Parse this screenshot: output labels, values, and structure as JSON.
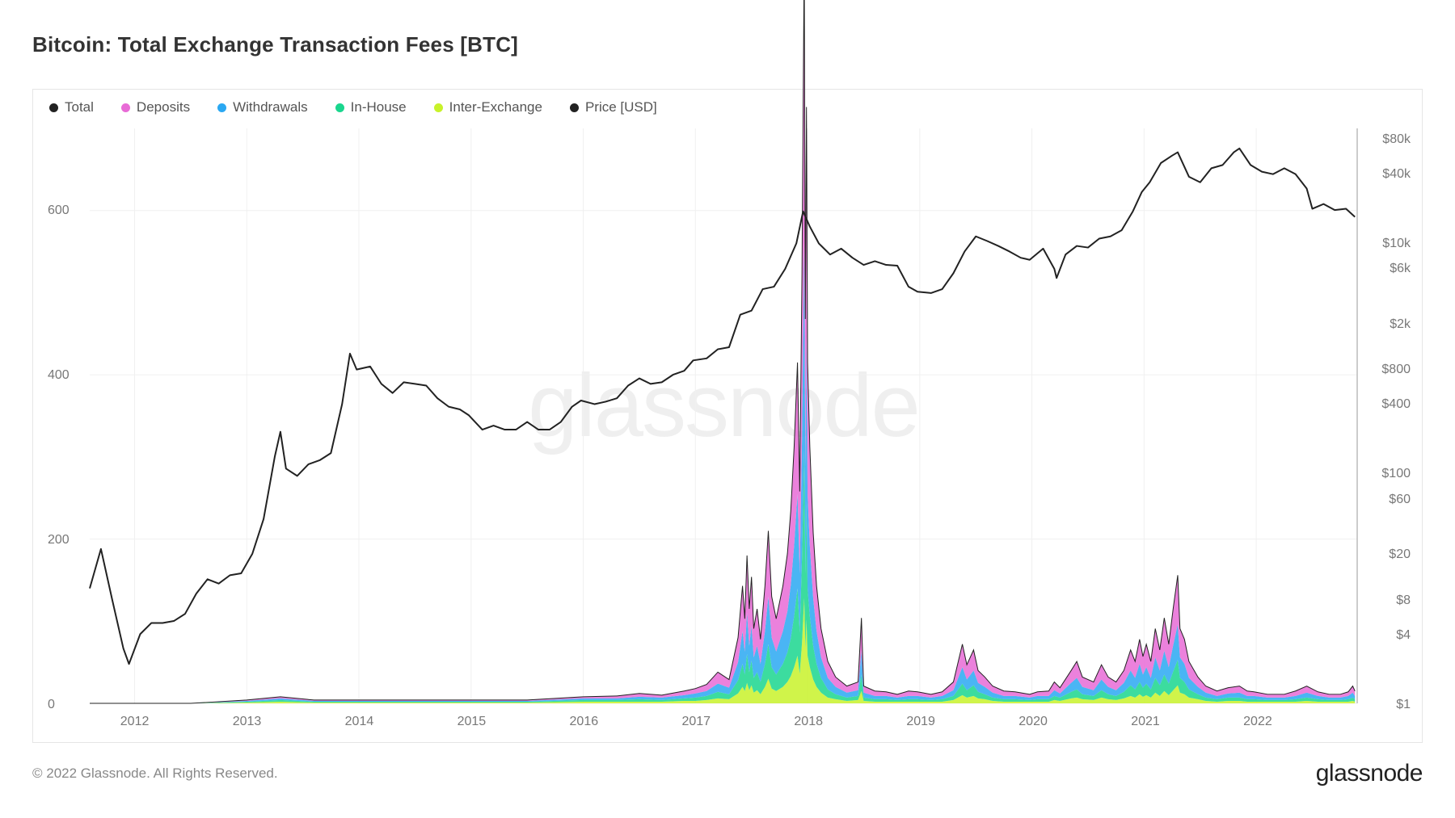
{
  "title": "Bitcoin: Total Exchange Transaction Fees [BTC]",
  "watermark": "glassnode",
  "copyright": "© 2022 Glassnode. All Rights Reserved.",
  "brand": "glassnode",
  "legend": [
    {
      "label": "Total",
      "color": "#222222"
    },
    {
      "label": "Deposits",
      "color": "#e86bd6"
    },
    {
      "label": "Withdrawals",
      "color": "#2aa8f2"
    },
    {
      "label": "In-House",
      "color": "#1ad68e"
    },
    {
      "label": "Inter-Exchange",
      "color": "#c8f22a"
    },
    {
      "label": "Price [USD]",
      "color": "#222222"
    }
  ],
  "chart": {
    "type": "combo-stacked-area+line-log-secondary",
    "background_color": "#ffffff",
    "border_color": "#e5e5e5",
    "grid_color": "#f0f0f0",
    "left_axis": {
      "scale": "linear",
      "min": 0,
      "max": 700,
      "ticks": [
        0,
        200,
        400,
        600
      ],
      "label_color": "#777777",
      "label_fontsize": 16
    },
    "right_axis": {
      "scale": "log",
      "min": 1,
      "max": 100000,
      "ticks": [
        "$1",
        "$4",
        "$8",
        "$20",
        "$60",
        "$100",
        "$400",
        "$800",
        "$2k",
        "$6k",
        "$10k",
        "$40k",
        "$80k"
      ],
      "tick_values": [
        1,
        4,
        8,
        20,
        60,
        100,
        400,
        800,
        2000,
        6000,
        10000,
        40000,
        80000
      ],
      "label_color": "#777777",
      "label_fontsize": 16
    },
    "x_axis": {
      "min_year": 2011.6,
      "max_year": 2022.9,
      "ticks": [
        "2012",
        "2013",
        "2014",
        "2015",
        "2016",
        "2017",
        "2018",
        "2019",
        "2020",
        "2021",
        "2022"
      ],
      "label_color": "#777777",
      "label_fontsize": 16
    },
    "price_line": {
      "color": "#222222",
      "width": 2,
      "points": [
        [
          2011.6,
          10
        ],
        [
          2011.7,
          22
        ],
        [
          2011.8,
          8
        ],
        [
          2011.9,
          3
        ],
        [
          2011.95,
          2.2
        ],
        [
          2012.05,
          4
        ],
        [
          2012.15,
          5
        ],
        [
          2012.25,
          5
        ],
        [
          2012.35,
          5.2
        ],
        [
          2012.45,
          6
        ],
        [
          2012.55,
          9
        ],
        [
          2012.65,
          12
        ],
        [
          2012.75,
          11
        ],
        [
          2012.85,
          13
        ],
        [
          2012.95,
          13.5
        ],
        [
          2013.05,
          20
        ],
        [
          2013.15,
          40
        ],
        [
          2013.25,
          140
        ],
        [
          2013.3,
          230
        ],
        [
          2013.35,
          110
        ],
        [
          2013.45,
          95
        ],
        [
          2013.55,
          120
        ],
        [
          2013.65,
          130
        ],
        [
          2013.75,
          150
        ],
        [
          2013.85,
          400
        ],
        [
          2013.92,
          1100
        ],
        [
          2013.98,
          800
        ],
        [
          2014.1,
          850
        ],
        [
          2014.2,
          600
        ],
        [
          2014.3,
          500
        ],
        [
          2014.4,
          620
        ],
        [
          2014.5,
          600
        ],
        [
          2014.6,
          580
        ],
        [
          2014.7,
          450
        ],
        [
          2014.8,
          380
        ],
        [
          2014.9,
          360
        ],
        [
          2014.98,
          320
        ],
        [
          2015.1,
          240
        ],
        [
          2015.2,
          260
        ],
        [
          2015.3,
          240
        ],
        [
          2015.4,
          240
        ],
        [
          2015.5,
          280
        ],
        [
          2015.6,
          240
        ],
        [
          2015.7,
          240
        ],
        [
          2015.8,
          280
        ],
        [
          2015.9,
          380
        ],
        [
          2015.98,
          430
        ],
        [
          2016.1,
          400
        ],
        [
          2016.2,
          420
        ],
        [
          2016.3,
          450
        ],
        [
          2016.4,
          580
        ],
        [
          2016.5,
          670
        ],
        [
          2016.6,
          600
        ],
        [
          2016.7,
          620
        ],
        [
          2016.8,
          720
        ],
        [
          2016.9,
          780
        ],
        [
          2016.98,
          960
        ],
        [
          2017.1,
          1000
        ],
        [
          2017.2,
          1200
        ],
        [
          2017.3,
          1250
        ],
        [
          2017.4,
          2400
        ],
        [
          2017.5,
          2600
        ],
        [
          2017.6,
          4000
        ],
        [
          2017.7,
          4200
        ],
        [
          2017.8,
          6000
        ],
        [
          2017.9,
          10000
        ],
        [
          2017.96,
          19000
        ],
        [
          2018.02,
          14000
        ],
        [
          2018.1,
          10000
        ],
        [
          2018.2,
          8000
        ],
        [
          2018.3,
          9000
        ],
        [
          2018.4,
          7500
        ],
        [
          2018.5,
          6500
        ],
        [
          2018.6,
          7000
        ],
        [
          2018.7,
          6500
        ],
        [
          2018.8,
          6400
        ],
        [
          2018.9,
          4200
        ],
        [
          2018.98,
          3800
        ],
        [
          2019.1,
          3700
        ],
        [
          2019.2,
          4000
        ],
        [
          2019.3,
          5500
        ],
        [
          2019.4,
          8500
        ],
        [
          2019.5,
          11500
        ],
        [
          2019.6,
          10500
        ],
        [
          2019.7,
          9500
        ],
        [
          2019.8,
          8500
        ],
        [
          2019.9,
          7500
        ],
        [
          2019.98,
          7200
        ],
        [
          2020.1,
          9000
        ],
        [
          2020.2,
          6000
        ],
        [
          2020.22,
          5000
        ],
        [
          2020.3,
          8000
        ],
        [
          2020.4,
          9500
        ],
        [
          2020.5,
          9200
        ],
        [
          2020.6,
          11000
        ],
        [
          2020.7,
          11500
        ],
        [
          2020.8,
          13000
        ],
        [
          2020.9,
          19000
        ],
        [
          2020.98,
          28000
        ],
        [
          2021.05,
          34000
        ],
        [
          2021.15,
          50000
        ],
        [
          2021.25,
          58000
        ],
        [
          2021.3,
          62000
        ],
        [
          2021.4,
          38000
        ],
        [
          2021.5,
          34000
        ],
        [
          2021.6,
          45000
        ],
        [
          2021.7,
          48000
        ],
        [
          2021.8,
          62000
        ],
        [
          2021.85,
          67000
        ],
        [
          2021.95,
          48000
        ],
        [
          2022.05,
          42000
        ],
        [
          2022.15,
          40000
        ],
        [
          2022.25,
          45000
        ],
        [
          2022.35,
          40000
        ],
        [
          2022.45,
          30000
        ],
        [
          2022.5,
          20000
        ],
        [
          2022.6,
          22000
        ],
        [
          2022.7,
          19500
        ],
        [
          2022.8,
          20000
        ],
        [
          2022.88,
          17000
        ]
      ]
    },
    "total_line": {
      "color": "#222222",
      "width": 1,
      "area": false
    },
    "stacked_series": [
      {
        "key": "inter_exchange",
        "color": "#c8f22a"
      },
      {
        "key": "in_house",
        "color": "#1ad68e"
      },
      {
        "key": "withdrawals",
        "color": "#2aa8f2"
      },
      {
        "key": "deposits",
        "color": "#e86bd6"
      }
    ],
    "fees_points": [
      [
        2011.6,
        0,
        0,
        0,
        0
      ],
      [
        2012.0,
        0,
        0,
        0,
        0
      ],
      [
        2012.5,
        0,
        0,
        0,
        0
      ],
      [
        2013.0,
        1,
        1,
        1,
        1
      ],
      [
        2013.3,
        2,
        2,
        2,
        2
      ],
      [
        2013.6,
        1,
        1,
        1,
        1
      ],
      [
        2014.0,
        1,
        1,
        1,
        1
      ],
      [
        2014.5,
        1,
        1,
        1,
        1
      ],
      [
        2015.0,
        1,
        1,
        1,
        1
      ],
      [
        2015.5,
        1,
        1,
        1,
        1
      ],
      [
        2016.0,
        2,
        2,
        2,
        2
      ],
      [
        2016.3,
        3,
        2,
        2,
        2
      ],
      [
        2016.5,
        4,
        3,
        3,
        2
      ],
      [
        2016.7,
        3,
        3,
        2,
        2
      ],
      [
        2016.9,
        5,
        4,
        3,
        3
      ],
      [
        2017.0,
        6,
        5,
        4,
        3
      ],
      [
        2017.1,
        8,
        6,
        5,
        4
      ],
      [
        2017.2,
        14,
        10,
        8,
        6
      ],
      [
        2017.3,
        10,
        8,
        6,
        5
      ],
      [
        2017.38,
        30,
        22,
        16,
        12
      ],
      [
        2017.42,
        55,
        40,
        28,
        20
      ],
      [
        2017.44,
        40,
        28,
        20,
        15
      ],
      [
        2017.46,
        70,
        50,
        35,
        25
      ],
      [
        2017.48,
        45,
        32,
        22,
        16
      ],
      [
        2017.5,
        60,
        42,
        30,
        22
      ],
      [
        2017.52,
        35,
        25,
        18,
        13
      ],
      [
        2017.55,
        45,
        32,
        22,
        16
      ],
      [
        2017.58,
        30,
        22,
        15,
        11
      ],
      [
        2017.62,
        55,
        40,
        28,
        20
      ],
      [
        2017.65,
        80,
        58,
        42,
        30
      ],
      [
        2017.68,
        50,
        36,
        26,
        18
      ],
      [
        2017.72,
        40,
        28,
        20,
        15
      ],
      [
        2017.78,
        55,
        40,
        28,
        20
      ],
      [
        2017.82,
        70,
        50,
        36,
        26
      ],
      [
        2017.85,
        90,
        65,
        46,
        33
      ],
      [
        2017.88,
        120,
        86,
        62,
        44
      ],
      [
        2017.91,
        160,
        115,
        82,
        58
      ],
      [
        2017.93,
        100,
        72,
        50,
        36
      ],
      [
        2017.95,
        200,
        145,
        103,
        73
      ],
      [
        2017.97,
        350,
        252,
        180,
        128
      ],
      [
        2017.98,
        180,
        130,
        92,
        66
      ],
      [
        2017.99,
        280,
        200,
        144,
        102
      ],
      [
        2018.0,
        160,
        115,
        82,
        58
      ],
      [
        2018.02,
        120,
        86,
        62,
        44
      ],
      [
        2018.05,
        80,
        58,
        41,
        29
      ],
      [
        2018.08,
        55,
        40,
        28,
        20
      ],
      [
        2018.12,
        35,
        25,
        18,
        13
      ],
      [
        2018.18,
        20,
        14,
        10,
        7
      ],
      [
        2018.25,
        12,
        9,
        6,
        5
      ],
      [
        2018.35,
        8,
        6,
        4,
        3
      ],
      [
        2018.45,
        10,
        7,
        5,
        4
      ],
      [
        2018.48,
        40,
        29,
        20,
        15
      ],
      [
        2018.5,
        8,
        6,
        4,
        3
      ],
      [
        2018.6,
        6,
        4,
        3,
        2
      ],
      [
        2018.7,
        5,
        4,
        3,
        2
      ],
      [
        2018.8,
        4,
        3,
        2,
        2
      ],
      [
        2018.9,
        6,
        4,
        3,
        2
      ],
      [
        2018.98,
        5,
        4,
        3,
        2
      ],
      [
        2019.1,
        4,
        3,
        2,
        2
      ],
      [
        2019.2,
        5,
        4,
        3,
        2
      ],
      [
        2019.3,
        10,
        7,
        5,
        4
      ],
      [
        2019.38,
        28,
        20,
        14,
        10
      ],
      [
        2019.42,
        18,
        13,
        9,
        7
      ],
      [
        2019.48,
        25,
        18,
        13,
        9
      ],
      [
        2019.52,
        15,
        11,
        8,
        6
      ],
      [
        2019.58,
        12,
        9,
        6,
        5
      ],
      [
        2019.65,
        8,
        6,
        4,
        3
      ],
      [
        2019.75,
        6,
        4,
        3,
        2
      ],
      [
        2019.85,
        5,
        4,
        3,
        2
      ],
      [
        2019.98,
        4,
        3,
        2,
        2
      ],
      [
        2020.05,
        5,
        4,
        3,
        2
      ],
      [
        2020.15,
        6,
        4,
        3,
        2
      ],
      [
        2020.2,
        10,
        7,
        5,
        4
      ],
      [
        2020.25,
        7,
        5,
        4,
        3
      ],
      [
        2020.35,
        15,
        11,
        8,
        6
      ],
      [
        2020.4,
        20,
        14,
        10,
        7
      ],
      [
        2020.45,
        12,
        9,
        6,
        5
      ],
      [
        2020.55,
        10,
        7,
        5,
        4
      ],
      [
        2020.62,
        18,
        13,
        9,
        7
      ],
      [
        2020.68,
        12,
        9,
        6,
        5
      ],
      [
        2020.75,
        10,
        7,
        5,
        4
      ],
      [
        2020.82,
        15,
        11,
        8,
        6
      ],
      [
        2020.88,
        25,
        18,
        13,
        9
      ],
      [
        2020.92,
        20,
        14,
        10,
        7
      ],
      [
        2020.96,
        30,
        22,
        15,
        11
      ],
      [
        2020.99,
        22,
        16,
        11,
        8
      ],
      [
        2021.02,
        28,
        20,
        14,
        10
      ],
      [
        2021.06,
        20,
        14,
        10,
        7
      ],
      [
        2021.1,
        35,
        25,
        18,
        13
      ],
      [
        2021.14,
        25,
        18,
        13,
        9
      ],
      [
        2021.18,
        40,
        29,
        20,
        15
      ],
      [
        2021.22,
        28,
        20,
        14,
        10
      ],
      [
        2021.26,
        45,
        32,
        23,
        16
      ],
      [
        2021.3,
        60,
        43,
        31,
        22
      ],
      [
        2021.32,
        35,
        25,
        18,
        13
      ],
      [
        2021.36,
        30,
        22,
        15,
        11
      ],
      [
        2021.4,
        20,
        14,
        10,
        7
      ],
      [
        2021.48,
        12,
        9,
        6,
        5
      ],
      [
        2021.55,
        8,
        6,
        4,
        3
      ],
      [
        2021.65,
        6,
        4,
        3,
        2
      ],
      [
        2021.75,
        7,
        5,
        4,
        3
      ],
      [
        2021.85,
        8,
        6,
        4,
        3
      ],
      [
        2021.92,
        6,
        4,
        3,
        2
      ],
      [
        2021.98,
        5,
        4,
        3,
        2
      ],
      [
        2022.1,
        4,
        3,
        2,
        2
      ],
      [
        2022.25,
        4,
        3,
        2,
        2
      ],
      [
        2022.35,
        6,
        4,
        3,
        2
      ],
      [
        2022.45,
        8,
        6,
        4,
        3
      ],
      [
        2022.55,
        5,
        4,
        3,
        2
      ],
      [
        2022.65,
        4,
        3,
        2,
        2
      ],
      [
        2022.75,
        4,
        3,
        2,
        2
      ],
      [
        2022.82,
        5,
        4,
        3,
        2
      ],
      [
        2022.86,
        8,
        6,
        4,
        3
      ],
      [
        2022.88,
        6,
        4,
        3,
        2
      ]
    ]
  }
}
